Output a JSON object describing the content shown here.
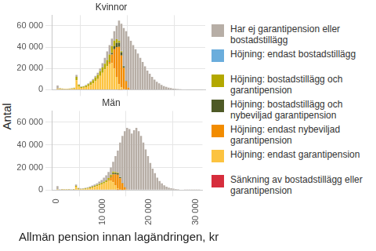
{
  "chart_data": [
    {
      "type": "bar",
      "title": "Kvinnor",
      "ylabel": "Antal",
      "stacked": true,
      "grid": true,
      "legend": "right",
      "tick_labels": "y",
      "bins": [
        0,
        500,
        1000,
        1500,
        2000,
        2500,
        3000,
        3500,
        4000,
        4500,
        5000,
        5500,
        6000,
        6500,
        7000,
        7500,
        8000,
        8500,
        9000,
        9500,
        10000,
        10500,
        11000,
        11500,
        12000,
        12500,
        13000,
        13500,
        14000,
        14500,
        15000,
        15500,
        16000,
        16500,
        17000,
        17500,
        18000,
        18500,
        19000,
        19500,
        20000,
        20500,
        21000,
        21500,
        22000,
        22500,
        23000,
        23500,
        24000,
        24500,
        25000,
        25500,
        26000,
        26500,
        27000,
        27500,
        28000,
        28500,
        29000,
        29500,
        30000,
        30500,
        31000
      ],
      "xlim": [
        -1000,
        31500
      ],
      "ylim": [
        0,
        70000
      ],
      "xticks": [
        0,
        {
          "value": 10000,
          "label": "10 000"
        },
        {
          "value": 20000,
          "label": "20 000"
        },
        {
          "value": 30000,
          "label": "30 000"
        }
      ],
      "yticks": [
        0,
        {
          "value": 20000,
          "label": "20 000"
        },
        {
          "value": 40000,
          "label": "40 000"
        },
        {
          "value": 60000,
          "label": "60 000"
        }
      ],
      "series": [
        {
          "name": "Har ej garantipension eller bostadstillägg",
          "color": "#b7aea6",
          "values": [
            3000,
            300,
            200,
            100,
            100,
            200,
            200,
            300,
            2000,
            500,
            400,
            500,
            700,
            700,
            1000,
            1000,
            1500,
            2000,
            2500,
            4000,
            5500,
            8000,
            9000,
            7000,
            9000,
            12500,
            18500,
            25400,
            35400,
            46300,
            48000,
            46000,
            42000,
            38000,
            34000,
            30000,
            26000,
            22000,
            18000,
            15000,
            12000,
            9500,
            7500,
            6000,
            4500,
            3500,
            2600,
            2000,
            1500,
            1100,
            800,
            600,
            450,
            350,
            250,
            200,
            150,
            100,
            80,
            60,
            40,
            30
          ]
        },
        {
          "name": "Höjning: endast bostadstillägg",
          "color": "#6aaddc",
          "values": [
            0,
            0,
            0,
            0,
            0,
            0,
            0,
            0,
            0,
            0,
            0,
            0,
            0,
            0,
            0,
            0,
            0,
            0,
            0,
            0,
            0,
            0,
            0,
            0,
            0,
            0,
            300,
            400,
            300,
            200,
            0,
            0,
            0,
            0,
            0,
            0,
            0,
            0,
            0,
            0,
            0,
            0,
            0,
            0,
            0,
            0,
            0,
            0,
            0,
            0,
            0,
            0,
            0,
            0,
            0,
            0,
            0,
            0,
            0,
            0,
            0,
            0
          ]
        },
        {
          "name": "Höjning: bostadstillägg och garantipension",
          "color": "#b3a800",
          "values": [
            200,
            400,
            300,
            300,
            300,
            300,
            400,
            500,
            3000,
            1500,
            800,
            1000,
            1300,
            1800,
            2500,
            3000,
            3500,
            4000,
            4500,
            5000,
            5500,
            6000,
            6500,
            6500,
            5000,
            3500,
            2000,
            1000,
            300,
            0,
            0,
            0,
            0,
            0,
            0,
            0,
            0,
            0,
            0,
            0,
            0,
            0,
            0,
            0,
            0,
            0,
            0,
            0,
            0,
            0,
            0,
            0,
            0,
            0,
            0,
            0,
            0,
            0,
            0,
            0,
            0,
            0
          ]
        },
        {
          "name": "Höjning: bostadstillägg och nybeviljad garantipension",
          "color": "#4e5a26",
          "values": [
            0,
            0,
            0,
            0,
            0,
            0,
            0,
            0,
            0,
            0,
            0,
            0,
            0,
            0,
            0,
            0,
            0,
            0,
            0,
            0,
            0,
            0,
            500,
            1500,
            3000,
            4000,
            4000,
            3000,
            1500,
            500,
            0,
            0,
            0,
            0,
            0,
            0,
            0,
            0,
            0,
            0,
            0,
            0,
            0,
            0,
            0,
            0,
            0,
            0,
            0,
            0,
            0,
            0,
            0,
            0,
            0,
            0,
            0,
            0,
            0,
            0,
            0,
            0
          ]
        },
        {
          "name": "Höjning: endast nybeviljad garantipension",
          "color": "#f28c00",
          "values": [
            0,
            0,
            0,
            0,
            0,
            0,
            0,
            0,
            0,
            0,
            0,
            0,
            0,
            0,
            0,
            0,
            0,
            0,
            0,
            0,
            0,
            0,
            2000,
            8000,
            18000,
            28000,
            35000,
            30000,
            20000,
            8000,
            2000,
            0,
            0,
            0,
            0,
            0,
            0,
            0,
            0,
            0,
            0,
            0,
            0,
            0,
            0,
            0,
            0,
            0,
            0,
            0,
            0,
            0,
            0,
            0,
            0,
            0,
            0,
            0,
            0,
            0,
            0,
            0
          ]
        },
        {
          "name": "Höjning: endast garantipension",
          "color": "#fcc340",
          "values": [
            800,
            800,
            700,
            600,
            600,
            700,
            900,
            1200,
            9000,
            3000,
            1800,
            2000,
            2500,
            3500,
            4500,
            6000,
            8000,
            10000,
            13000,
            16000,
            19000,
            22000,
            24000,
            25000,
            20000,
            12000,
            5000,
            2000,
            500,
            0,
            0,
            0,
            0,
            0,
            0,
            0,
            0,
            0,
            0,
            0,
            0,
            0,
            0,
            0,
            0,
            0,
            0,
            0,
            0,
            0,
            0,
            0,
            0,
            0,
            0,
            0,
            0,
            0,
            0,
            0,
            0,
            0
          ]
        },
        {
          "name": "Sänkning av bostadstillägg eller garantipension",
          "color": "#d62d3c",
          "values": [
            0,
            0,
            0,
            0,
            0,
            0,
            0,
            0,
            0,
            0,
            0,
            0,
            0,
            0,
            0,
            0,
            0,
            0,
            0,
            0,
            0,
            0,
            0,
            0,
            0,
            0,
            200,
            200,
            0,
            0,
            0,
            0,
            0,
            0,
            0,
            0,
            0,
            0,
            0,
            0,
            0,
            0,
            0,
            0,
            0,
            0,
            0,
            0,
            0,
            0,
            0,
            0,
            0,
            0,
            0,
            0,
            0,
            0,
            0,
            0,
            0,
            0
          ]
        }
      ]
    },
    {
      "type": "bar",
      "title": "Män",
      "xlabel": "Allmän pension innan lagändringen, kr",
      "stacked": true,
      "grid": true,
      "bins": [
        0,
        500,
        1000,
        1500,
        2000,
        2500,
        3000,
        3500,
        4000,
        4500,
        5000,
        5500,
        6000,
        6500,
        7000,
        7500,
        8000,
        8500,
        9000,
        9500,
        10000,
        10500,
        11000,
        11500,
        12000,
        12500,
        13000,
        13500,
        14000,
        14500,
        15000,
        15500,
        16000,
        16500,
        17000,
        17500,
        18000,
        18500,
        19000,
        19500,
        20000,
        20500,
        21000,
        21500,
        22000,
        22500,
        23000,
        23500,
        24000,
        24500,
        25000,
        25500,
        26000,
        26500,
        27000,
        27500,
        28000,
        28500,
        29000,
        29500,
        30000,
        30500,
        31000
      ],
      "xlim": [
        -1000,
        31500
      ],
      "ylim": [
        0,
        70000
      ],
      "xticks": [
        0,
        {
          "value": 10000,
          "label": "10 000"
        },
        {
          "value": 20000,
          "label": "20 000"
        },
        {
          "value": 30000,
          "label": "30 000"
        }
      ],
      "yticks": [
        0,
        {
          "value": 20000,
          "label": "20 000"
        },
        {
          "value": 40000,
          "label": "40 000"
        },
        {
          "value": 60000,
          "label": "60 000"
        }
      ],
      "series": [
        {
          "name": "Har ej garantipension eller bostadstillägg",
          "color": "#b7aea6",
          "values": [
            2800,
            300,
            300,
            200,
            200,
            300,
            300,
            300,
            1200,
            600,
            500,
            600,
            600,
            700,
            900,
            1000,
            1300,
            1500,
            2100,
            2700,
            3600,
            4500,
            5400,
            6400,
            8700,
            13900,
            19600,
            30250,
            41400,
            49400,
            54400,
            54000,
            50000,
            53000,
            55000,
            52000,
            48000,
            42000,
            36000,
            30000,
            24000,
            19000,
            15000,
            11000,
            8000,
            6000,
            4200,
            3000,
            2200,
            1600,
            1200,
            900,
            700,
            500,
            400,
            300,
            250,
            200,
            150,
            120,
            100,
            80
          ]
        },
        {
          "name": "Höjning: endast bostadstillägg",
          "color": "#6aaddc",
          "values": [
            0,
            0,
            0,
            0,
            0,
            0,
            0,
            0,
            0,
            0,
            0,
            0,
            0,
            0,
            0,
            0,
            0,
            0,
            0,
            0,
            0,
            0,
            0,
            0,
            0,
            0,
            100,
            150,
            100,
            0,
            0,
            0,
            0,
            0,
            0,
            0,
            0,
            0,
            0,
            0,
            0,
            0,
            0,
            0,
            0,
            0,
            0,
            0,
            0,
            0,
            0,
            0,
            0,
            0,
            0,
            0,
            0,
            0,
            0,
            0,
            0,
            0
          ]
        },
        {
          "name": "Höjning: bostadstillägg och garantipension",
          "color": "#b3a800",
          "values": [
            100,
            100,
            100,
            100,
            100,
            100,
            100,
            200,
            800,
            400,
            300,
            300,
            400,
            500,
            600,
            800,
            900,
            1000,
            1200,
            1300,
            1400,
            1500,
            1600,
            1600,
            1300,
            900,
            500,
            200,
            0,
            0,
            0,
            0,
            0,
            0,
            0,
            0,
            0,
            0,
            0,
            0,
            0,
            0,
            0,
            0,
            0,
            0,
            0,
            0,
            0,
            0,
            0,
            0,
            0,
            0,
            0,
            0,
            0,
            0,
            0,
            0,
            0,
            0
          ]
        },
        {
          "name": "Höjning: bostadstillägg och nybeviljad garantipension",
          "color": "#4e5a26",
          "values": [
            0,
            0,
            0,
            0,
            0,
            0,
            0,
            0,
            0,
            0,
            0,
            0,
            0,
            0,
            0,
            0,
            0,
            0,
            0,
            0,
            0,
            0,
            200,
            500,
            1000,
            1200,
            1200,
            900,
            400,
            100,
            0,
            0,
            0,
            0,
            0,
            0,
            0,
            0,
            0,
            0,
            0,
            0,
            0,
            0,
            0,
            0,
            0,
            0,
            0,
            0,
            0,
            0,
            0,
            0,
            0,
            0,
            0,
            0,
            0,
            0,
            0,
            0
          ]
        },
        {
          "name": "Höjning: endast nybeviljad garantipension",
          "color": "#f28c00",
          "values": [
            0,
            0,
            0,
            0,
            0,
            0,
            0,
            0,
            0,
            0,
            0,
            0,
            0,
            0,
            0,
            0,
            0,
            0,
            0,
            0,
            0,
            0,
            800,
            3000,
            7000,
            10000,
            12000,
            10000,
            6000,
            2500,
            600,
            0,
            0,
            0,
            0,
            0,
            0,
            0,
            0,
            0,
            0,
            0,
            0,
            0,
            0,
            0,
            0,
            0,
            0,
            0,
            0,
            0,
            0,
            0,
            0,
            0,
            0,
            0,
            0,
            0,
            0,
            0
          ]
        },
        {
          "name": "Höjning: endast garantipension",
          "color": "#fcc340",
          "values": [
            600,
            400,
            300,
            300,
            300,
            300,
            400,
            500,
            3000,
            1000,
            700,
            800,
            1000,
            1300,
            1700,
            2200,
            2800,
            3500,
            4200,
            5000,
            6000,
            7000,
            8000,
            8500,
            7000,
            4000,
            1500,
            500,
            100,
            0,
            0,
            0,
            0,
            0,
            0,
            0,
            0,
            0,
            0,
            0,
            0,
            0,
            0,
            0,
            0,
            0,
            0,
            0,
            0,
            0,
            0,
            0,
            0,
            0,
            0,
            0,
            0,
            0,
            0,
            0,
            0,
            0
          ]
        },
        {
          "name": "Sänkning av bostadstillägg eller garantipension",
          "color": "#d62d3c",
          "values": [
            0,
            0,
            0,
            0,
            0,
            0,
            0,
            0,
            0,
            0,
            0,
            0,
            0,
            0,
            0,
            0,
            0,
            0,
            0,
            0,
            0,
            0,
            0,
            0,
            0,
            0,
            100,
            0,
            0,
            0,
            0,
            0,
            0,
            0,
            0,
            0,
            0,
            0,
            0,
            0,
            0,
            0,
            0,
            0,
            0,
            0,
            0,
            0,
            0,
            0,
            0,
            0,
            0,
            0,
            0,
            0,
            0,
            0,
            0,
            0,
            0,
            0
          ]
        }
      ]
    }
  ]
}
